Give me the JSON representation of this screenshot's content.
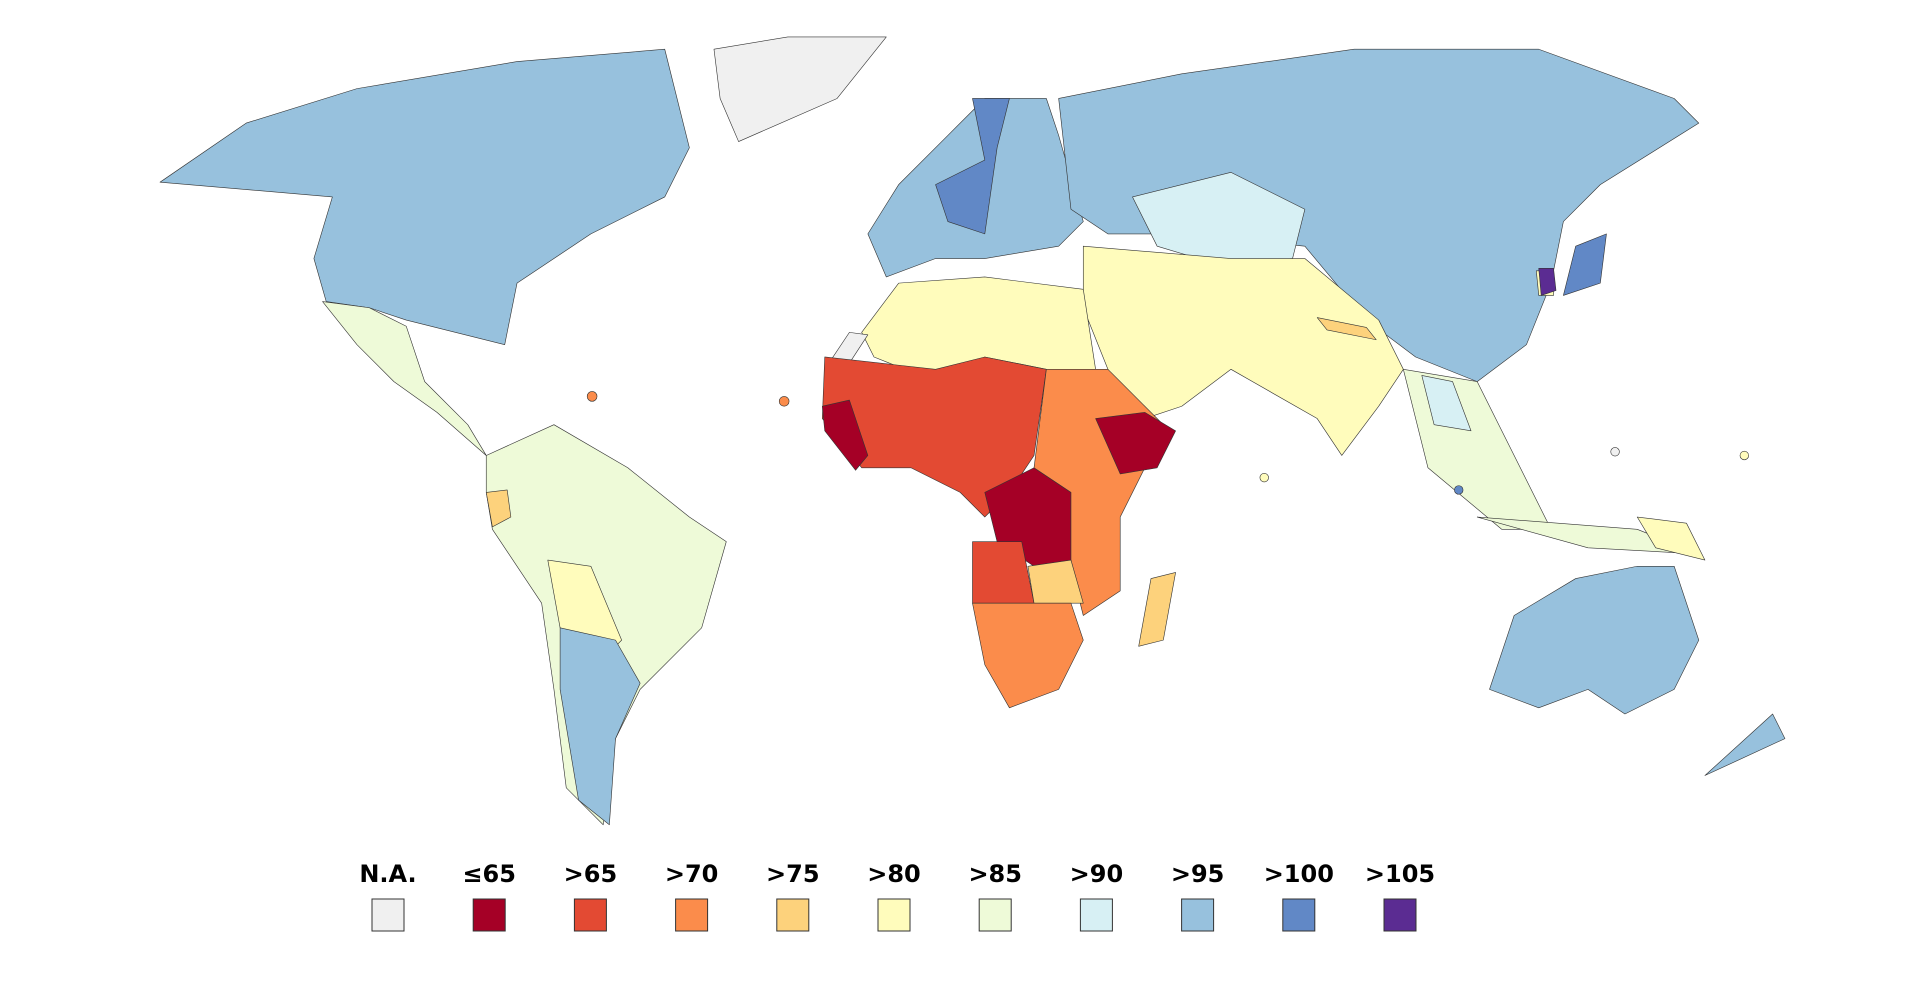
{
  "legend": {
    "items": [
      {
        "label": "N.A.",
        "color": "#f0f0f0"
      },
      {
        "label": "≤65",
        "color": "#a50026"
      },
      {
        "label": ">65",
        "color": "#e34a33"
      },
      {
        "label": ">70",
        "color": "#fb8c4b"
      },
      {
        "label": ">75",
        "color": "#fdd27c"
      },
      {
        "label": ">80",
        "color": "#fffcbc"
      },
      {
        "label": ">85",
        "color": "#eefad8"
      },
      {
        "label": ">90",
        "color": "#d7f0f4"
      },
      {
        "label": ">95",
        "color": "#97c1dd"
      },
      {
        "label": ">100",
        "color": "#6188c6"
      },
      {
        "label": ">105",
        "color": "#5b2c92"
      }
    ]
  }
}
